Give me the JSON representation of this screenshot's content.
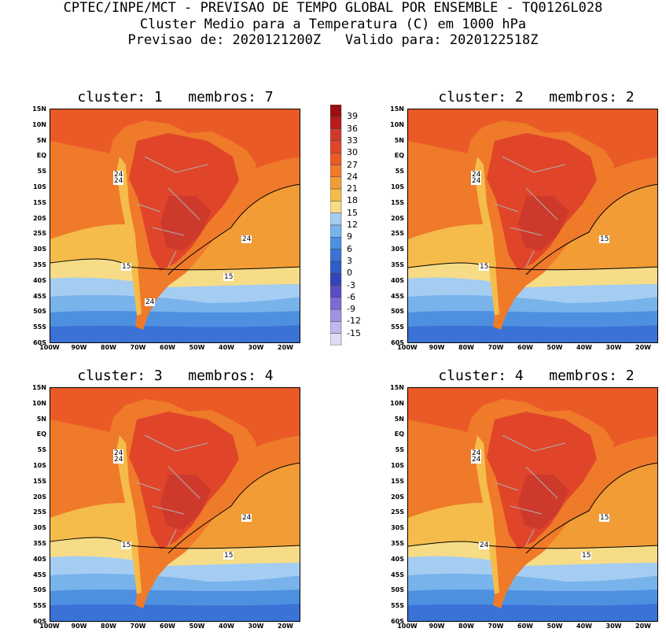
{
  "header": {
    "line1": "CPTEC/INPE/MCT - PREVISAO DE TEMPO GLOBAL POR ENSEMBLE - TQ0126L028",
    "line2": "Cluster Medio para a Temperatura (C) em 1000 hPa",
    "line3": "Previsao de: 2020121200Z   Valido para: 2020122518Z"
  },
  "panels": [
    {
      "title": "cluster: 1   membros: 7",
      "contour_labels": [
        "24",
        "24",
        "24",
        "15",
        "15",
        "24"
      ]
    },
    {
      "title": "cluster: 2   membros: 2",
      "contour_labels": [
        "24",
        "24",
        "15",
        "15"
      ]
    },
    {
      "title": "cluster: 3   membros: 4",
      "contour_labels": [
        "24",
        "24",
        "24",
        "15",
        "15"
      ]
    },
    {
      "title": "cluster: 4   membros: 2",
      "contour_labels": [
        "24",
        "24",
        "15",
        "24",
        "15"
      ]
    }
  ],
  "lat_labels": [
    "15N",
    "10N",
    "5N",
    "EQ",
    "5S",
    "10S",
    "15S",
    "20S",
    "25S",
    "30S",
    "35S",
    "40S",
    "45S",
    "50S",
    "55S",
    "60S"
  ],
  "lon_labels": [
    "100W",
    "90W",
    "80W",
    "70W",
    "60W",
    "50W",
    "40W",
    "30W",
    "20W"
  ],
  "colorbar": {
    "labels": [
      "39",
      "36",
      "33",
      "30",
      "27",
      "24",
      "21",
      "18",
      "15",
      "12",
      "9",
      "6",
      "3",
      "0",
      "-3",
      "-6",
      "-9",
      "-12",
      "-15"
    ],
    "colors": [
      "#9a0f0f",
      "#b81b1b",
      "#cd3a2c",
      "#e0452a",
      "#ea5a26",
      "#ef7a2a",
      "#f29c36",
      "#f5bc4b",
      "#f6dc86",
      "#a5cdf2",
      "#79b3ec",
      "#4e90e0",
      "#3a72d6",
      "#2c5dc8",
      "#3445b8",
      "#5a4dc4",
      "#7c6bd4",
      "#a291e2",
      "#c3b6ee",
      "#e0d9f6"
    ]
  }
}
